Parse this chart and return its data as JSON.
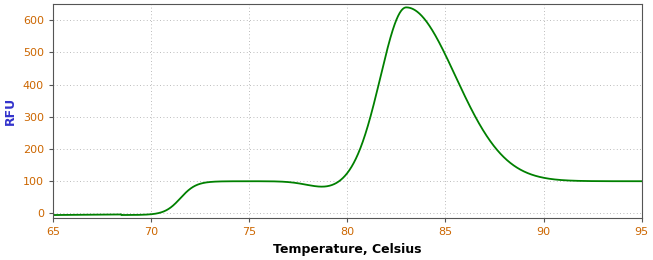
{
  "title": "",
  "xlabel": "Temperature, Celsius",
  "ylabel": "RFU",
  "xlim": [
    65,
    95
  ],
  "ylim": [
    -15,
    650
  ],
  "xticks": [
    65,
    70,
    75,
    80,
    85,
    90,
    95
  ],
  "yticks": [
    0,
    100,
    200,
    300,
    400,
    500,
    600
  ],
  "line_color": "#008000",
  "background_color": "#ffffff",
  "grid_color": "#808080",
  "ylabel_color": "#3333cc",
  "xlabel_color": "#000000",
  "tick_label_color": "#cc6600",
  "line_width": 1.3,
  "xlabel_fontsize": 9,
  "ylabel_fontsize": 9,
  "tick_fontsize": 8
}
